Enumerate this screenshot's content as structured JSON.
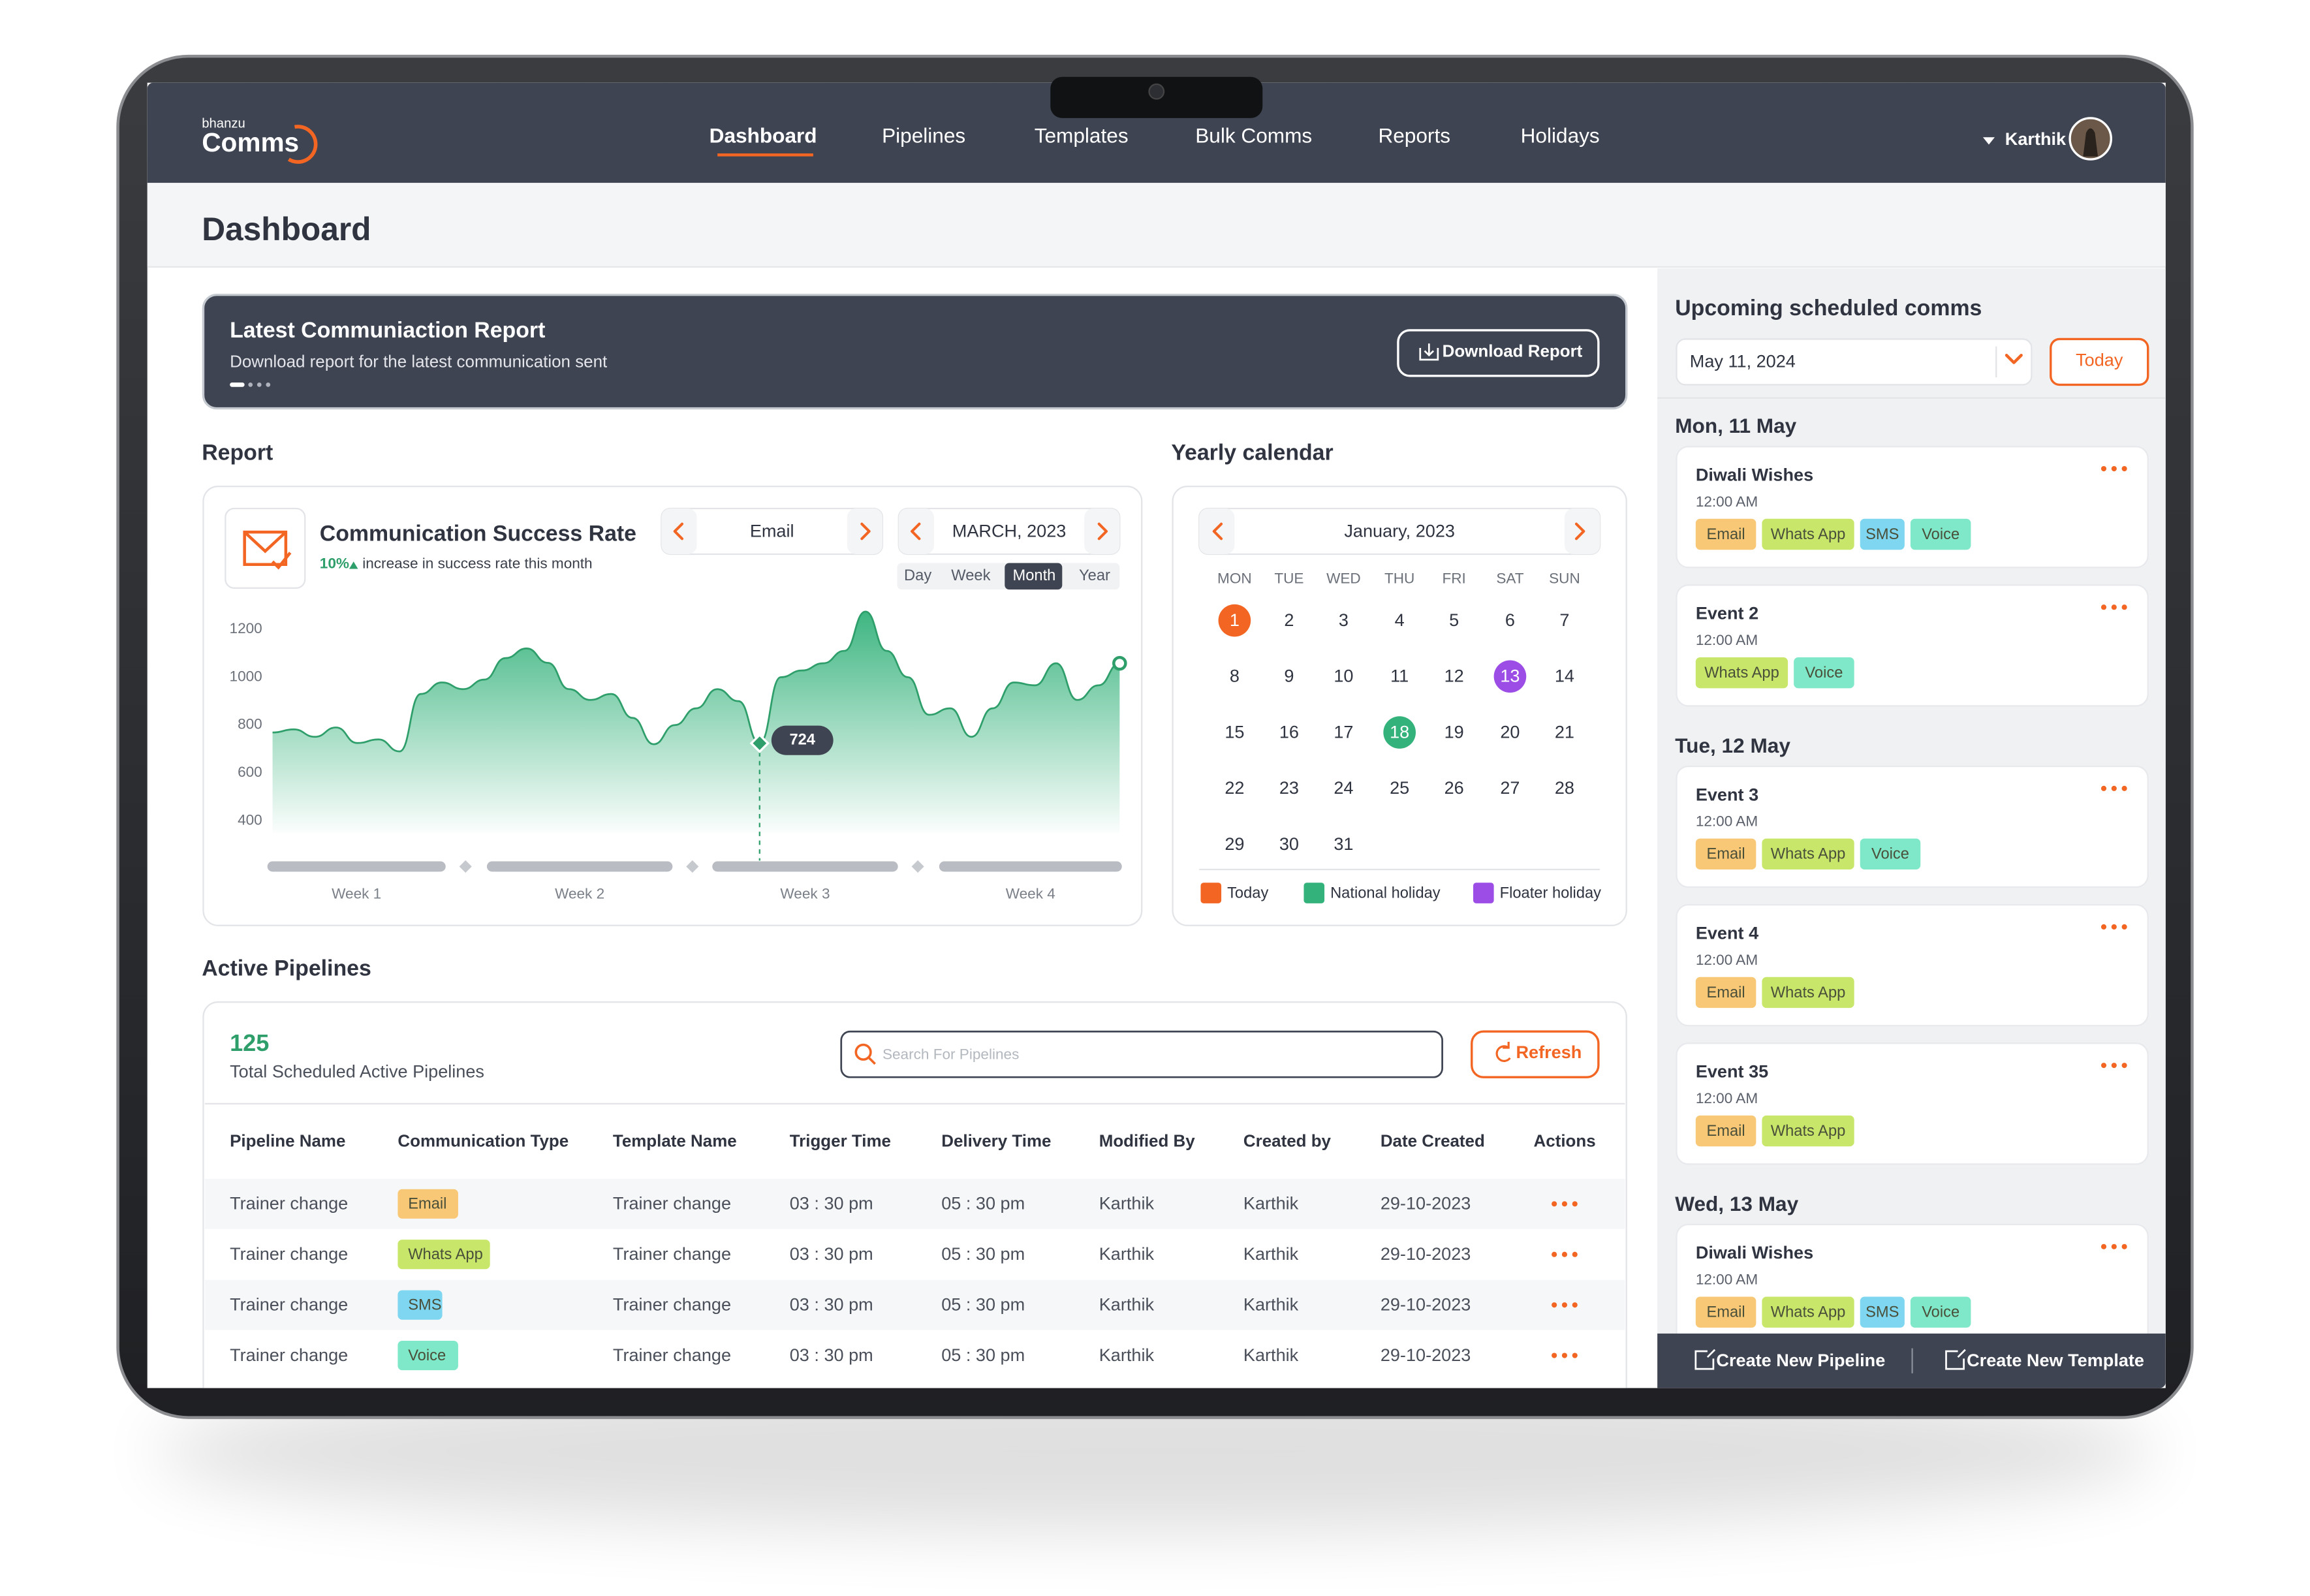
{
  "brand": {
    "small": "bhanzu",
    "name": "Comms"
  },
  "nav": [
    "Dashboard",
    "Pipelines",
    "Templates",
    "Bulk Comms",
    "Reports",
    "Holidays"
  ],
  "user": "Karthik",
  "page_title": "Dashboard",
  "banner": {
    "title": "Latest Communiaction Report",
    "subtitle": "Download report for the latest communication sent",
    "button": "Download Report"
  },
  "report": {
    "heading": "Report",
    "card_title": "Communication Success Rate",
    "change": "10%",
    "change_text": "increase in success rate this month",
    "channel": "Email",
    "month": "MARCH, 2023",
    "ranges": [
      "Day",
      "Week",
      "Month",
      "Year"
    ],
    "active_range": "Month",
    "chart": {
      "type": "area",
      "color": "#2e9e6a",
      "ylim": [
        350,
        1300
      ],
      "yticks": [
        400,
        600,
        800,
        1000,
        1200
      ],
      "weeks": [
        "Week 1",
        "Week 2",
        "Week 3",
        "Week 4"
      ],
      "values": [
        769,
        782,
        751,
        790,
        725,
        740,
        690,
        930,
        978,
        950,
        990,
        1080,
        1120,
        1060,
        950,
        905,
        930,
        830,
        720,
        800,
        870,
        950,
        900,
        724,
        1000,
        1028,
        1058,
        1110,
        1274,
        1110,
        1000,
        843,
        870,
        751,
        870,
        978,
        966,
        1058,
        905,
        966,
        1058
      ],
      "tooltip_value": 724
    }
  },
  "calendar": {
    "heading": "Yearly calendar",
    "month": "January, 2023",
    "weekdays": [
      "MON",
      "TUE",
      "WED",
      "THU",
      "FRI",
      "SAT",
      "SUN"
    ],
    "days": [
      "1",
      "2",
      "3",
      "4",
      "5",
      "6",
      "7",
      "8",
      "9",
      "10",
      "11",
      "12",
      "13",
      "14",
      "15",
      "16",
      "17",
      "18",
      "19",
      "20",
      "21",
      "22",
      "23",
      "24",
      "25",
      "26",
      "27",
      "28",
      "29",
      "30",
      "31"
    ],
    "today": 1,
    "national_holiday": 18,
    "floater_holiday": 13,
    "legend": [
      {
        "label": "Today",
        "color": "#f26522"
      },
      {
        "label": "National holiday",
        "color": "#34b27b"
      },
      {
        "label": "Floater holiday",
        "color": "#9b4de6"
      }
    ]
  },
  "pipelines": {
    "heading": "Active Pipelines",
    "count": "125",
    "count_label": "Total Scheduled Active Pipelines",
    "search_placeholder": "Search For Pipelines",
    "refresh": "Refresh",
    "columns": [
      "Pipeline Name",
      "Communication Type",
      "Template Name",
      "Trigger Time",
      "Delivery Time",
      "Modified By",
      "Created by",
      "Date Created",
      "Actions"
    ],
    "rows": [
      {
        "cells": [
          "Trainer change",
          "Email",
          "Trainer change",
          "03 : 30 pm",
          "05 : 30 pm",
          "Karthik",
          "Karthik",
          "29-10-2023"
        ],
        "type_color": "#f8c877"
      },
      {
        "cells": [
          "Trainer change",
          "Whats App",
          "Trainer change",
          "03 : 30 pm",
          "05 : 30 pm",
          "Karthik",
          "Karthik",
          "29-10-2023"
        ],
        "type_color": "#c8e76a"
      },
      {
        "cells": [
          "Trainer change",
          "SMS",
          "Trainer change",
          "03 : 30 pm",
          "05 : 30 pm",
          "Karthik",
          "Karthik",
          "29-10-2023"
        ],
        "type_color": "#7fd6f0"
      },
      {
        "cells": [
          "Trainer change",
          "Voice",
          "Trainer change",
          "03 : 30 pm",
          "05 : 30 pm",
          "Karthik",
          "Karthik",
          "29-10-2023"
        ],
        "type_color": "#7fe8c8"
      }
    ]
  },
  "upcoming": {
    "heading": "Upcoming scheduled comms",
    "date": "May 11, 2024",
    "today": "Today",
    "groups": [
      {
        "day": "Mon, 11 May",
        "events": [
          {
            "name": "Diwali Wishes",
            "time": "12:00 AM",
            "tags": [
              {
                "label": "Email",
                "color": "#f8c877"
              },
              {
                "label": "Whats App",
                "color": "#c8e76a"
              },
              {
                "label": "SMS",
                "color": "#7fd6f0"
              },
              {
                "label": "Voice",
                "color": "#7fe8c8"
              }
            ]
          },
          {
            "name": "Event 2",
            "time": "12:00 AM",
            "tags": [
              {
                "label": "Whats App",
                "color": "#c8e76a"
              },
              {
                "label": "Voice",
                "color": "#7fe8c8"
              }
            ]
          }
        ]
      },
      {
        "day": "Tue, 12 May",
        "events": [
          {
            "name": "Event 3",
            "time": "12:00 AM",
            "tags": [
              {
                "label": "Email",
                "color": "#f8c877"
              },
              {
                "label": "Whats App",
                "color": "#c8e76a"
              },
              {
                "label": "Voice",
                "color": "#7fe8c8"
              }
            ]
          },
          {
            "name": "Event 4",
            "time": "12:00 AM",
            "tags": [
              {
                "label": "Email",
                "color": "#f8c877"
              },
              {
                "label": "Whats App",
                "color": "#c8e76a"
              }
            ]
          },
          {
            "name": "Event 35",
            "time": "12:00 AM",
            "tags": [
              {
                "label": "Email",
                "color": "#f8c877"
              },
              {
                "label": "Whats App",
                "color": "#c8e76a"
              }
            ]
          }
        ]
      },
      {
        "day": "Wed, 13 May",
        "events": [
          {
            "name": "Diwali Wishes",
            "time": "12:00 AM",
            "tags": [
              {
                "label": "Email",
                "color": "#f8c877"
              },
              {
                "label": "Whats App",
                "color": "#c8e76a"
              },
              {
                "label": "SMS",
                "color": "#7fd6f0"
              },
              {
                "label": "Voice",
                "color": "#7fe8c8"
              }
            ]
          }
        ]
      }
    ]
  },
  "footer_actions": [
    "Create New Pipeline",
    "Create New Template"
  ]
}
